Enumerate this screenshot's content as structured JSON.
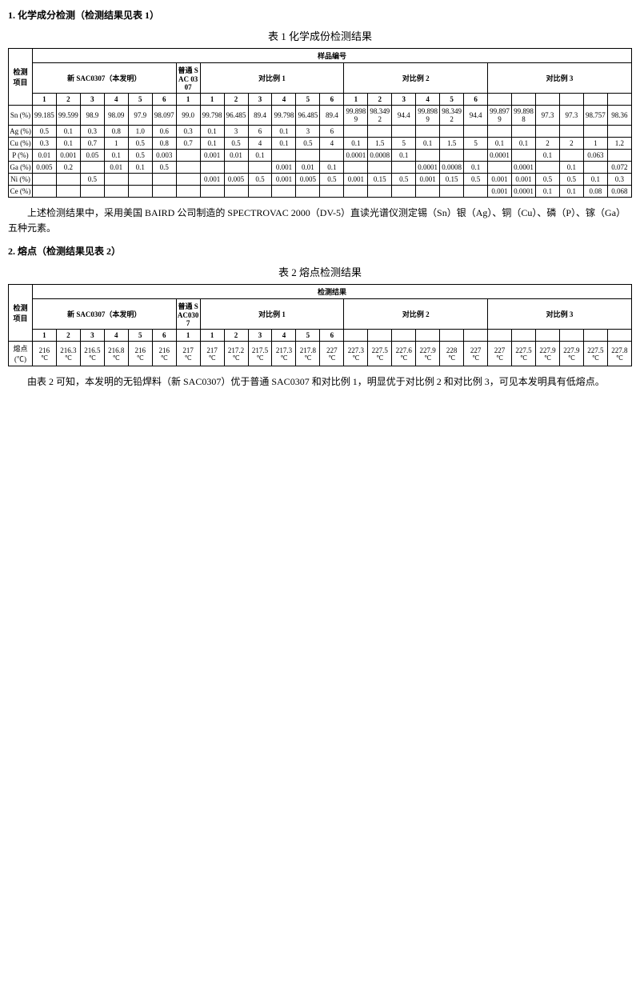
{
  "section1_title": "1. 化学成分检测（检测结果见表 1）",
  "table1_caption": "表 1  化学成份检测结果",
  "table1": {
    "col_header_main": "样品编号",
    "row_header_label": "检测项目",
    "groups": [
      {
        "label": "新 SAC0307（本发明）",
        "cols": [
          "1",
          "2",
          "3",
          "4",
          "5",
          "6"
        ]
      },
      {
        "label": "普通 SAC 0307",
        "cols": [
          "1"
        ]
      },
      {
        "label": "对比例 1",
        "cols": [
          "1",
          "2",
          "3",
          "4",
          "5",
          "6"
        ]
      },
      {
        "label": "对比例 2",
        "cols": [
          "1",
          "2",
          "3",
          "4",
          "5",
          "6"
        ]
      },
      {
        "label": "对比例 3",
        "cols": [
          "",
          "",
          "",
          "",
          "",
          ""
        ]
      }
    ],
    "rows": [
      {
        "label": "Sn (%)",
        "vals": [
          "99.185",
          "99.599",
          "98.9",
          "98.09",
          "97.9",
          "98.097",
          "99.0",
          "99.798",
          "96.485",
          "89.4",
          "99.798",
          "96.485",
          "89.4",
          "99.8989",
          "98.3492",
          "94.4",
          "99.8989",
          "98.3492",
          "94.4",
          "99.8979",
          "99.8988",
          "97.3",
          "97.3",
          "98.757",
          "98.36"
        ]
      },
      {
        "label": "Ag (%)",
        "vals": [
          "0.5",
          "0.1",
          "0.3",
          "0.8",
          "1.0",
          "0.6",
          "0.3",
          "0.1",
          "3",
          "6",
          "0.1",
          "3",
          "6",
          "",
          "",
          "",
          "",
          "",
          "",
          "",
          "",
          "",
          "",
          "",
          ""
        ]
      },
      {
        "label": "Cu (%)",
        "vals": [
          "0.3",
          "0.1",
          "0.7",
          "1",
          "0.5",
          "0.8",
          "0.7",
          "0.1",
          "0.5",
          "4",
          "0.1",
          "0.5",
          "4",
          "0.1",
          "1.5",
          "5",
          "0.1",
          "1.5",
          "5",
          "0.1",
          "0.1",
          "2",
          "2",
          "1",
          "1.2"
        ]
      },
      {
        "label": "P (%)",
        "vals": [
          "0.01",
          "0.001",
          "0.05",
          "0.1",
          "0.5",
          "0.003",
          "",
          "0.001",
          "0.01",
          "0.1",
          "",
          "",
          "",
          "0.0001",
          "0.0008",
          "0.1",
          "",
          "",
          "",
          "0.0001",
          "",
          "0.1",
          "",
          "0.063",
          ""
        ]
      },
      {
        "label": "Ga (%)",
        "vals": [
          "0.005",
          "0.2",
          "",
          "0.01",
          "0.1",
          "0.5",
          "",
          "",
          "",
          "",
          "0.001",
          "0.01",
          "0.1",
          "",
          "",
          "",
          "0.0001",
          "0.0008",
          "0.1",
          "",
          "0.0001",
          "",
          "0.1",
          "",
          "0.072"
        ]
      },
      {
        "label": "Ni (%)",
        "vals": [
          "",
          "",
          "0.5",
          "",
          "",
          "",
          "",
          "0.001",
          "0.005",
          "0.5",
          "0.001",
          "0.005",
          "0.5",
          "0.001",
          "0.15",
          "0.5",
          "0.001",
          "0.15",
          "0.5",
          "0.001",
          "0.001",
          "0.5",
          "0.5",
          "0.1",
          "0.3"
        ]
      },
      {
        "label": "Ce (%)",
        "vals": [
          "",
          "",
          "",
          "",
          "",
          "",
          "",
          "",
          "",
          "",
          "",
          "",
          "",
          "",
          "",
          "",
          "",
          "",
          "",
          "0.001",
          "0.0001",
          "0.1",
          "0.1",
          "0.08",
          "0.068"
        ]
      }
    ]
  },
  "para1": "上述检测结果中，采用美国 BAIRD 公司制造的 SPECTROVAC 2000（DV-5）直读光谱仪测定锡（Sn）银（Ag）、铜（Cu）、磷（P）、镓（Ga）五种元素。",
  "section2_title": "2. 熔点（检测结果见表 2）",
  "table2_caption": "表 2  熔点检测结果",
  "table2": {
    "row_header_label": "检测项目",
    "result_header": "检测结果",
    "groups": [
      {
        "label": "新 SAC0307（本发明）",
        "cols": [
          "1",
          "2",
          "3",
          "4",
          "5",
          "6"
        ]
      },
      {
        "label": "普通 SAC0307",
        "cols": [
          "1"
        ]
      },
      {
        "label": "对比例 1",
        "cols": [
          "1",
          "2",
          "3",
          "4",
          "5",
          "6"
        ]
      },
      {
        "label": "对比例 2",
        "cols": [
          "",
          "",
          "",
          "",
          "",
          ""
        ]
      },
      {
        "label": "对比例 3",
        "cols": [
          "",
          "",
          "",
          "",
          "",
          ""
        ]
      }
    ],
    "row_label": "熔点 (℃)",
    "unit": "℃",
    "vals": [
      "216",
      "216.3",
      "216.5",
      "216.8",
      "216",
      "216",
      "217",
      "217",
      "217.2",
      "217.5",
      "217.3",
      "217.8",
      "227",
      "227.3",
      "227.5",
      "227.6",
      "227.9",
      "228",
      "227",
      "227",
      "227.5",
      "227.9",
      "227.9",
      "227.5",
      "227.8"
    ]
  },
  "para2": "由表 2 可知，本发明的无铅焊料（新 SAC0307）优于普通 SAC0307 和对比例 1，明显优于对比例 2 和对比例 3，可见本发明具有低熔点。"
}
